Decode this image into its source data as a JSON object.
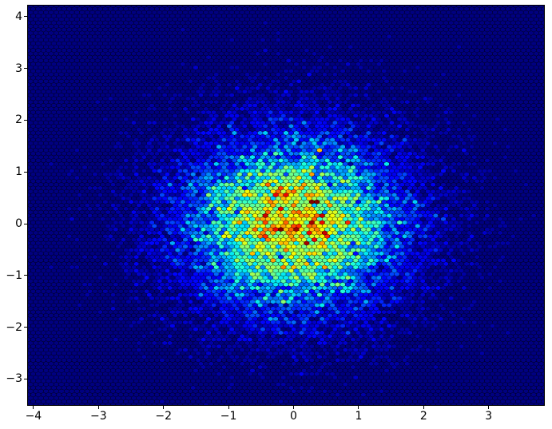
{
  "figure": {
    "background": "#ffffff"
  },
  "chart_data": {
    "type": "hexbin",
    "title": "",
    "xlabel": "",
    "ylabel": "",
    "xlim": [
      -4.085,
      3.851
    ],
    "ylim": [
      -3.503,
      4.213
    ],
    "x_ticks": [
      -4,
      -3,
      -2,
      -1,
      0,
      1,
      2,
      3
    ],
    "y_ticks": [
      4,
      3,
      2,
      1,
      0,
      -1,
      -2,
      -3
    ],
    "grid": false,
    "legend": false,
    "colormap": "jet",
    "gridsize_nx": 100,
    "bin_row_count": 116,
    "distribution": {
      "type": "gaussian_2d",
      "mean": [
        0,
        0
      ],
      "sigma": [
        1,
        1
      ],
      "n_points": 25000
    },
    "seed": 42,
    "colors": {
      "zero_count_bin": "#000080",
      "bin_gap": "#000000",
      "axes_frame": "#000000",
      "tick_color": "#000000",
      "tick_label_color": "#000000"
    }
  }
}
